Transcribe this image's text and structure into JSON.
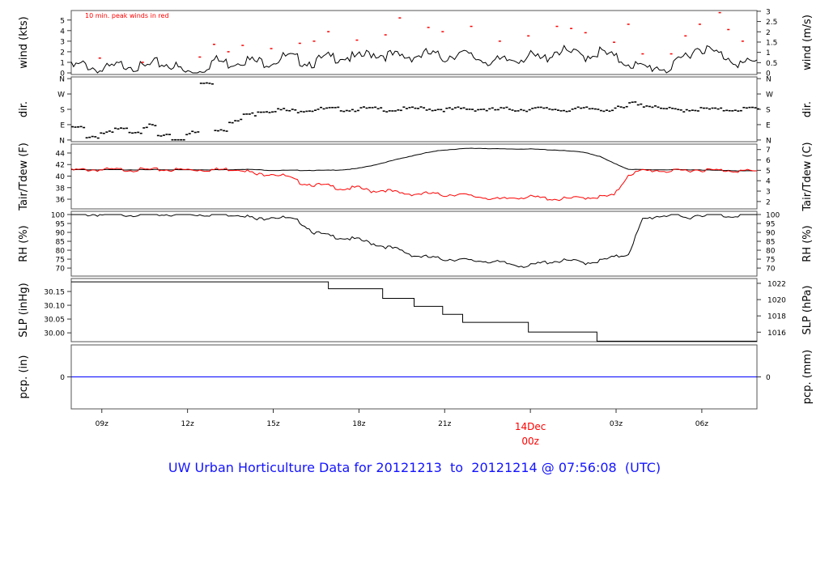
{
  "chart_data": {
    "type": "line",
    "title": "UW Urban Horticulture Data for 20121213  to  20121214 @ 07:56:08  (UTC)",
    "x_unit": "hours since 20121213 07:56 UTC",
    "xlim": [
      0,
      24
    ],
    "x_ticks": [
      {
        "h": 1.07,
        "label": "09z"
      },
      {
        "h": 4.07,
        "label": "12z"
      },
      {
        "h": 7.07,
        "label": "15z"
      },
      {
        "h": 10.07,
        "label": "18z"
      },
      {
        "h": 13.07,
        "label": "21z"
      },
      {
        "h": 16.07,
        "label": "00z",
        "date_label": "14Dec"
      },
      {
        "h": 19.07,
        "label": "03z"
      },
      {
        "h": 22.07,
        "label": "06z"
      }
    ],
    "annotation": "10 min. peak winds in red",
    "colors": {
      "main": "#000000",
      "peak": "#ff0000",
      "dewpoint": "#ff0000",
      "precip": "#0000ff",
      "title": "#1414ff",
      "date": "#ff0000"
    },
    "panels": [
      {
        "id": "wind",
        "ylabel": "wind (kts)",
        "ylabel_right": "wind (m/s)",
        "ylim": [
          -0.15,
          5.9
        ],
        "ticks": [
          0,
          1,
          2,
          3,
          4,
          5
        ],
        "ticks_right": [
          0,
          0.5,
          1,
          1.5,
          2,
          2.5,
          3
        ],
        "right_factor": 1.944
      },
      {
        "id": "dir",
        "ylabel": "dir.",
        "ylabel_right": "dir.",
        "ylim": [
          -10,
          370
        ],
        "ticks": [
          {
            "v": 0,
            "l": "N"
          },
          {
            "v": 90,
            "l": "E"
          },
          {
            "v": 180,
            "l": "S"
          },
          {
            "v": 270,
            "l": "W"
          },
          {
            "v": 360,
            "l": "N"
          }
        ]
      },
      {
        "id": "temp",
        "ylabel": "Tair/Tdew (F)",
        "ylabel_right": "Tair/Tdew (C)",
        "ylim": [
          34.32,
          45.54
        ],
        "ticks": [
          36,
          38,
          40,
          42,
          44
        ],
        "ticks_right": [
          2,
          3,
          4,
          5,
          6,
          7
        ]
      },
      {
        "id": "rh",
        "ylabel": "RH (%)",
        "ylabel_right": "RH (%)",
        "ylim": [
          65.5,
          101.8
        ],
        "ticks": [
          70,
          75,
          80,
          85,
          90,
          95,
          100
        ],
        "ticks_right": [
          70,
          75,
          80,
          85,
          90,
          95,
          100
        ]
      },
      {
        "id": "slp",
        "ylabel": "SLP (inHg)",
        "ylabel_right": "SLP (hPa)",
        "ylim": [
          29.968,
          30.197
        ],
        "ticks": [
          "30.00",
          "30.05",
          "30.10",
          "30.15"
        ],
        "ticks_right": [
          1016,
          1018,
          1020,
          1022
        ]
      },
      {
        "id": "pcp",
        "ylabel": "pcp. (in)",
        "ylabel_right": "pcp. (mm)",
        "ylim": [
          -1,
          1
        ],
        "ticks": [
          0
        ],
        "ticks_right": [
          0
        ]
      }
    ],
    "series": {
      "wind_kts": [
        0.5,
        0.8,
        0.2,
        0.5,
        0.9,
        0.4,
        0.9,
        0.8,
        0,
        0.2,
        1.2,
        0.9,
        1.3,
        1.0,
        1.1,
        1.5,
        1.2,
        1.0,
        1.4,
        1.6,
        1.3,
        1.9,
        1.7,
        1.5,
        1.6,
        1.8,
        1.4,
        1.9,
        1.5,
        1.2,
        1.0,
        1.3,
        1.6,
        1.2,
        2.2,
        1.8,
        1.6,
        2.0,
        1.4,
        1.0,
        0.4,
        0.6,
        0.3,
        1.7,
        2.5,
        1.9,
        1.5,
        0.8,
        1.0
      ],
      "peak_kts": [
        [
          1,
          1.4
        ],
        [
          2.5,
          1.0
        ],
        [
          4.5,
          1.5
        ],
        [
          5,
          2.7
        ],
        [
          5.5,
          2.0
        ],
        [
          6,
          2.6
        ],
        [
          7,
          2.3
        ],
        [
          8,
          2.8
        ],
        [
          8.5,
          3.0
        ],
        [
          9,
          3.9
        ],
        [
          10,
          3.1
        ],
        [
          11,
          3.6
        ],
        [
          11.5,
          5.2
        ],
        [
          12.5,
          4.3
        ],
        [
          13,
          3.9
        ],
        [
          14,
          4.4
        ],
        [
          15,
          3.0
        ],
        [
          16,
          3.5
        ],
        [
          17,
          4.4
        ],
        [
          17.5,
          4.2
        ],
        [
          18,
          3.8
        ],
        [
          19,
          2.9
        ],
        [
          19.5,
          4.6
        ],
        [
          20,
          1.8
        ],
        [
          21,
          1.8
        ],
        [
          21.5,
          3.5
        ],
        [
          22,
          4.6
        ],
        [
          22.7,
          5.7
        ],
        [
          23,
          4.1
        ],
        [
          23.5,
          3.0
        ]
      ],
      "dir_deg": [
        70,
        20,
        40,
        60,
        50,
        80,
        20,
        0,
        40,
        330,
        60,
        110,
        150,
        170,
        175,
        170,
        175,
        180,
        180,
        178,
        182,
        180,
        176,
        180,
        184,
        180,
        178,
        182,
        180,
        176,
        180,
        178,
        182,
        180,
        176,
        180,
        182,
        178,
        185,
        215,
        200,
        180,
        175,
        178,
        180,
        176,
        178,
        182,
        180
      ],
      "tair_f": [
        41.1,
        41.1,
        41.1,
        41.1,
        41.1,
        41.1,
        41.1,
        41.1,
        41.1,
        41.1,
        41.1,
        41.1,
        41.2,
        41.1,
        41.0,
        41.0,
        41.0,
        41.0,
        41.0,
        41.1,
        41.3,
        41.8,
        42.4,
        43.0,
        43.6,
        44.1,
        44.5,
        44.7,
        44.8,
        44.8,
        44.7,
        44.7,
        44.7,
        44.6,
        44.5,
        44.3,
        44.1,
        43.4,
        42.2,
        41.2,
        41.1,
        41.1,
        41.1,
        41.1,
        41.1,
        41.0,
        41.0,
        40.9,
        40.9
      ],
      "tdew_f": [
        41.0,
        41.1,
        41.1,
        41.1,
        41.1,
        41.1,
        41.1,
        41.1,
        41.1,
        41.1,
        41.1,
        41.2,
        41.2,
        40.2,
        40.5,
        40.0,
        38.9,
        38.5,
        38.3,
        37.8,
        38.0,
        37.4,
        37.6,
        37.0,
        36.9,
        37.0,
        36.7,
        36.9,
        36.5,
        36.3,
        35.9,
        36.3,
        36.4,
        36.2,
        36.0,
        36.1,
        36.3,
        36.4,
        36.6,
        40.3,
        40.9,
        41.0,
        40.8,
        41.0,
        41.1,
        41.0,
        41.0,
        40.9,
        40.8
      ],
      "rh_pct": [
        100,
        100,
        100,
        100,
        100,
        100,
        100,
        100,
        100,
        100,
        100,
        100,
        100,
        97,
        99,
        98,
        96,
        90,
        88,
        87,
        86,
        84,
        82,
        80,
        77,
        76,
        75,
        75,
        74,
        74,
        73,
        72,
        71,
        73,
        74,
        74,
        73,
        74,
        76,
        78,
        97,
        99,
        100,
        98,
        100,
        100,
        99,
        100,
        100
      ],
      "slp_steps": [
        [
          0,
          30.185
        ],
        [
          9.0,
          30.16
        ],
        [
          10.9,
          30.125
        ],
        [
          12.0,
          30.096
        ],
        [
          13.0,
          30.067
        ],
        [
          13.7,
          30.038
        ],
        [
          16.0,
          30.003
        ],
        [
          18.4,
          29.97
        ]
      ],
      "pcp_in": 0
    }
  }
}
